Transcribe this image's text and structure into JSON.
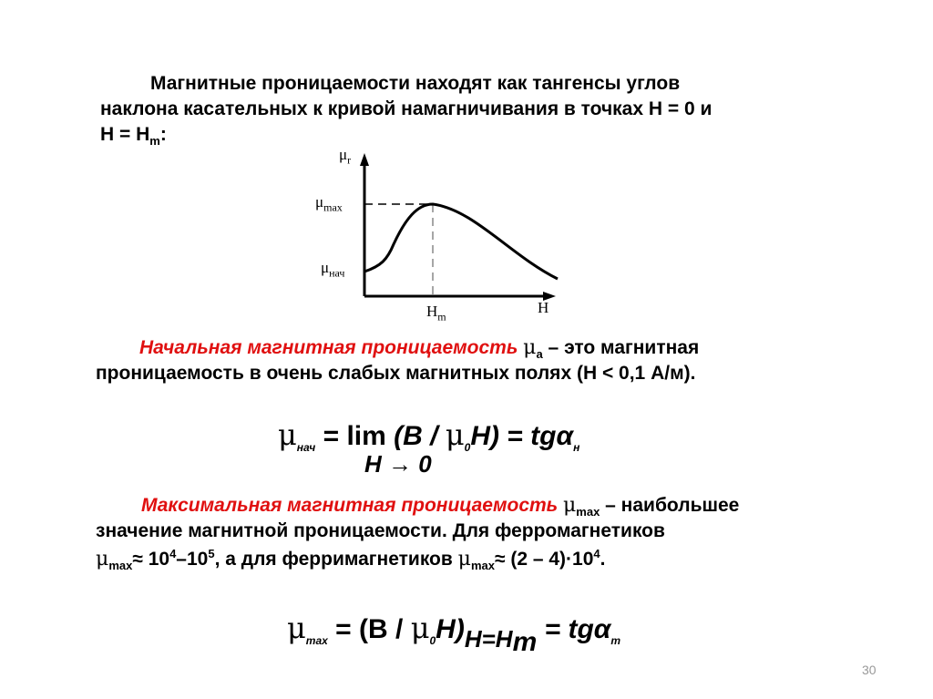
{
  "intro": {
    "line1": "Магнитные проницаемости находят как тангенсы углов",
    "line2": "наклона касательных к кривой намагничивания в точках H = 0 и",
    "line3_a": "H = H",
    "line3_sub": "m",
    "line3_b": ":"
  },
  "graph": {
    "y_label": "μ",
    "y_label_sub": "r",
    "mu_max": "μ",
    "mu_max_sub": "max",
    "mu_init": "μ",
    "mu_init_sub": "нач",
    "x_peak": "H",
    "x_peak_sub": "m",
    "x_label": "H"
  },
  "para_initial": {
    "term": "Начальная магнитная проницаемость",
    "mu": "μ",
    "mu_sub": "a",
    "rest1": " – это магнитная",
    "line2": "проницаемость в очень слабых магнитных полях (H < 0,1 А/м)."
  },
  "formula_initial": {
    "mu": "μ",
    "mu_sub": "нач",
    "eq": " = ",
    "lim": "lim",
    "paren": " (B / ",
    "mu0": "μ",
    "mu0_sub": "0",
    "h": "H)",
    "eq2": " = tgα",
    "alpha_sub": "н",
    "limit_under": "H → 0"
  },
  "para_max": {
    "term": "Максимальная магнитная проницаемость",
    "mu": "μ",
    "mu_sub": "max",
    "rest1": " – наибольшее",
    "line2": "значение магнитной проницаемости. Для ферромагнетиков",
    "l3_mu": "μ",
    "l3_mu_sub": "max",
    "l3_a": "≈ 10",
    "l3_sup1": "4",
    "l3_b": "–10",
    "l3_sup2": "5",
    "l3_c": ", а для ферримагнетиков ",
    "l3_mu2": "μ",
    "l3_mu2_sub": "max",
    "l3_d": "≈ (2 – 4)·10",
    "l3_sup3": "4",
    "l3_e": "."
  },
  "formula_max": {
    "mu": "μ",
    "mu_sub": "max",
    "eq": " = (B / ",
    "mu0": "μ",
    "mu0_sub": "0",
    "h": "H)",
    "cond": "H=H",
    "cond_sub": "m",
    "eq2": " = tgα",
    "alpha_sub": "m"
  },
  "page_number": "30",
  "colors": {
    "accent": "#e01010"
  }
}
